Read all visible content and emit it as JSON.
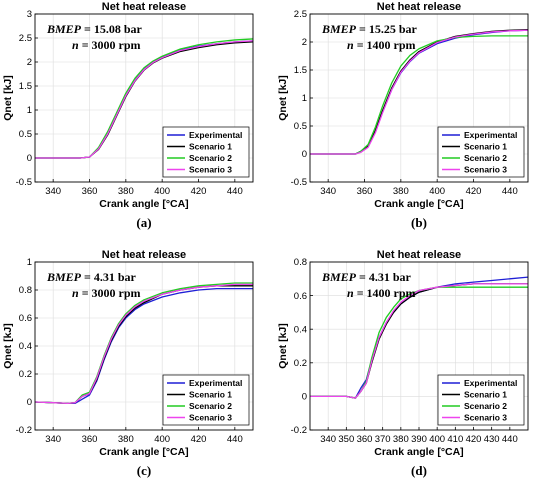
{
  "figure": {
    "background": "#ffffff"
  },
  "chart_data": [
    {
      "type": "line",
      "title": "Net heat release",
      "xlabel": "Crank angle [°CA]",
      "ylabel": "Qnet [kJ]",
      "xlim": [
        330,
        450
      ],
      "ylim": [
        -0.5,
        3
      ],
      "xticks": [
        340,
        360,
        380,
        400,
        420,
        440
      ],
      "yticks": [
        -0.5,
        0,
        0.5,
        1,
        1.5,
        2,
        2.5,
        3
      ],
      "ytick_labels": [
        "-0.5",
        "0",
        "0.5",
        "1",
        "1.5",
        "2",
        "2.5",
        "3"
      ],
      "annotation": {
        "var1": "BMEP",
        "eq1": " = 15.08 bar",
        "var2": "n",
        "eq2": " = 3000 rpm"
      },
      "sublabel": "(a)",
      "legend_position": "lower-right",
      "series": [
        {
          "name": "Experimental",
          "color": "#1f1fd6",
          "x": [
            330,
            340,
            350,
            355,
            360,
            365,
            370,
            375,
            380,
            385,
            390,
            395,
            400,
            410,
            420,
            430,
            440,
            450
          ],
          "y": [
            0,
            0,
            0,
            0,
            0.02,
            0.2,
            0.5,
            0.9,
            1.3,
            1.62,
            1.85,
            2.0,
            2.1,
            2.25,
            2.33,
            2.38,
            2.42,
            2.44
          ]
        },
        {
          "name": "Scenario 1",
          "color": "#000000",
          "x": [
            330,
            340,
            350,
            355,
            360,
            365,
            370,
            375,
            380,
            385,
            390,
            395,
            400,
            410,
            420,
            430,
            440,
            450
          ],
          "y": [
            0,
            0,
            0,
            0,
            0.02,
            0.18,
            0.48,
            0.88,
            1.28,
            1.6,
            1.83,
            1.98,
            2.08,
            2.22,
            2.3,
            2.36,
            2.4,
            2.42
          ]
        },
        {
          "name": "Scenario 2",
          "color": "#22cc22",
          "x": [
            330,
            340,
            350,
            355,
            360,
            365,
            370,
            375,
            380,
            385,
            390,
            395,
            400,
            410,
            420,
            430,
            440,
            450
          ],
          "y": [
            0,
            0,
            0,
            0,
            0.02,
            0.22,
            0.55,
            0.95,
            1.35,
            1.66,
            1.88,
            2.02,
            2.12,
            2.27,
            2.36,
            2.42,
            2.46,
            2.48
          ]
        },
        {
          "name": "Scenario 3",
          "color": "#ee44ee",
          "x": [
            330,
            340,
            350,
            355,
            360,
            365,
            370,
            375,
            380,
            385,
            390,
            395,
            400,
            410,
            420,
            430,
            440,
            450
          ],
          "y": [
            0,
            0,
            0,
            0,
            0.02,
            0.19,
            0.5,
            0.9,
            1.3,
            1.61,
            1.84,
            1.99,
            2.09,
            2.24,
            2.32,
            2.38,
            2.42,
            2.44
          ]
        }
      ]
    },
    {
      "type": "line",
      "title": "Net heat release",
      "xlabel": "Crank angle [°CA]",
      "ylabel": "Qnet [kJ]",
      "xlim": [
        330,
        450
      ],
      "ylim": [
        -0.5,
        2.5
      ],
      "xticks": [
        340,
        360,
        380,
        400,
        420,
        440
      ],
      "yticks": [
        -0.5,
        0,
        0.5,
        1,
        1.5,
        2,
        2.5
      ],
      "ytick_labels": [
        "-0.5",
        "0",
        "0.5",
        "1",
        "1.5",
        "2",
        "2.5"
      ],
      "annotation": {
        "var1": "BMEP",
        "eq1": " = 15.25 bar",
        "var2": "n",
        "eq2": " = 1400 rpm"
      },
      "sublabel": "(b)",
      "legend_position": "lower-right",
      "series": [
        {
          "name": "Experimental",
          "color": "#1f1fd6",
          "x": [
            330,
            340,
            350,
            355,
            358,
            362,
            366,
            370,
            375,
            380,
            385,
            390,
            400,
            410,
            420,
            430,
            440,
            450
          ],
          "y": [
            0,
            0,
            0,
            0,
            0.05,
            0.15,
            0.4,
            0.75,
            1.15,
            1.45,
            1.65,
            1.8,
            1.97,
            2.07,
            2.13,
            2.17,
            2.2,
            2.21
          ]
        },
        {
          "name": "Scenario 1",
          "color": "#000000",
          "x": [
            330,
            340,
            350,
            355,
            358,
            362,
            366,
            370,
            375,
            380,
            385,
            390,
            400,
            410,
            420,
            430,
            440,
            450
          ],
          "y": [
            0,
            0,
            0,
            0,
            0.04,
            0.14,
            0.42,
            0.78,
            1.18,
            1.48,
            1.68,
            1.83,
            2.0,
            2.1,
            2.15,
            2.19,
            2.21,
            2.22
          ]
        },
        {
          "name": "Scenario 2",
          "color": "#22cc22",
          "x": [
            330,
            340,
            350,
            355,
            358,
            362,
            366,
            370,
            375,
            380,
            385,
            390,
            400,
            410,
            420,
            430,
            440,
            450
          ],
          "y": [
            0,
            0,
            0,
            0,
            0.05,
            0.17,
            0.48,
            0.86,
            1.27,
            1.57,
            1.76,
            1.88,
            2.02,
            2.08,
            2.1,
            2.11,
            2.11,
            2.11
          ]
        },
        {
          "name": "Scenario 3",
          "color": "#ee44ee",
          "x": [
            330,
            340,
            350,
            355,
            358,
            362,
            366,
            370,
            375,
            380,
            385,
            390,
            400,
            410,
            420,
            430,
            440,
            450
          ],
          "y": [
            0,
            0,
            0,
            0,
            0.03,
            0.12,
            0.38,
            0.74,
            1.15,
            1.46,
            1.66,
            1.81,
            1.99,
            2.09,
            2.14,
            2.18,
            2.2,
            2.21
          ]
        }
      ]
    },
    {
      "type": "line",
      "title": "Net heat release",
      "xlabel": "Crank angle [°CA]",
      "ylabel": "Qnet [kJ]",
      "xlim": [
        330,
        450
      ],
      "ylim": [
        -0.2,
        1
      ],
      "xticks": [
        340,
        360,
        380,
        400,
        420,
        440
      ],
      "yticks": [
        -0.2,
        0,
        0.2,
        0.4,
        0.6,
        0.8,
        1
      ],
      "ytick_labels": [
        "-0.2",
        "0",
        "0.2",
        "0.4",
        "0.6",
        "0.8",
        "1"
      ],
      "annotation": {
        "var1": "BMEP",
        "eq1": " = 4.31 bar",
        "var2": "n",
        "eq2": " = 3000 rpm"
      },
      "sublabel": "(c)",
      "legend_position": "lower-right",
      "series": [
        {
          "name": "Experimental",
          "color": "#1f1fd6",
          "x": [
            330,
            340,
            348,
            352,
            356,
            360,
            364,
            368,
            372,
            376,
            380,
            385,
            390,
            400,
            410,
            420,
            430,
            440,
            450
          ],
          "y": [
            0,
            -0.005,
            -0.01,
            -0.01,
            0.02,
            0.05,
            0.15,
            0.3,
            0.43,
            0.53,
            0.6,
            0.66,
            0.7,
            0.75,
            0.78,
            0.8,
            0.81,
            0.81,
            0.81
          ]
        },
        {
          "name": "Scenario 1",
          "color": "#000000",
          "x": [
            330,
            340,
            348,
            352,
            356,
            360,
            364,
            368,
            372,
            376,
            380,
            385,
            390,
            400,
            410,
            420,
            430,
            440,
            450
          ],
          "y": [
            0,
            -0.005,
            -0.01,
            -0.005,
            0.04,
            0.06,
            0.16,
            0.31,
            0.44,
            0.54,
            0.61,
            0.67,
            0.71,
            0.77,
            0.8,
            0.82,
            0.83,
            0.83,
            0.83
          ]
        },
        {
          "name": "Scenario 2",
          "color": "#22cc22",
          "x": [
            330,
            340,
            348,
            352,
            356,
            360,
            364,
            368,
            372,
            376,
            380,
            385,
            390,
            400,
            410,
            420,
            430,
            440,
            450
          ],
          "y": [
            0,
            -0.005,
            -0.01,
            -0.005,
            0.05,
            0.07,
            0.18,
            0.33,
            0.46,
            0.56,
            0.63,
            0.69,
            0.73,
            0.78,
            0.81,
            0.83,
            0.84,
            0.85,
            0.85
          ]
        },
        {
          "name": "Scenario 3",
          "color": "#ee44ee",
          "x": [
            330,
            340,
            348,
            352,
            356,
            360,
            364,
            368,
            372,
            376,
            380,
            385,
            390,
            400,
            410,
            420,
            430,
            440,
            450
          ],
          "y": [
            0,
            -0.005,
            -0.01,
            -0.005,
            0.04,
            0.06,
            0.17,
            0.32,
            0.45,
            0.55,
            0.62,
            0.68,
            0.72,
            0.77,
            0.8,
            0.82,
            0.83,
            0.84,
            0.84
          ]
        }
      ]
    },
    {
      "type": "line",
      "title": "Net heat release",
      "xlabel": "Crank angle [°CA]",
      "ylabel": "Qnet [kJ]",
      "xlim": [
        330,
        450
      ],
      "ylim": [
        -0.2,
        0.8
      ],
      "xticks": [
        340,
        350,
        360,
        370,
        380,
        390,
        400,
        410,
        420,
        430,
        440
      ],
      "yticks": [
        -0.2,
        0,
        0.2,
        0.4,
        0.6,
        0.8
      ],
      "ytick_labels": [
        "-0.2",
        "0",
        "0.2",
        "0.4",
        "0.6",
        "0.8"
      ],
      "annotation": {
        "var1": "BMEP",
        "eq1": " = 4.31 bar",
        "var2": "n",
        "eq2": " = 1400 rpm"
      },
      "sublabel": "(d)",
      "legend_position": "lower-right",
      "series": [
        {
          "name": "Experimental",
          "color": "#1f1fd6",
          "x": [
            330,
            340,
            350,
            355,
            358,
            361,
            364,
            368,
            372,
            376,
            380,
            385,
            390,
            400,
            410,
            420,
            430,
            440,
            450
          ],
          "y": [
            0,
            0,
            0,
            -0.01,
            0.05,
            0.1,
            0.22,
            0.35,
            0.44,
            0.5,
            0.55,
            0.59,
            0.62,
            0.65,
            0.67,
            0.68,
            0.69,
            0.7,
            0.71
          ]
        },
        {
          "name": "Scenario 1",
          "color": "#000000",
          "x": [
            330,
            340,
            350,
            355,
            358,
            361,
            364,
            368,
            372,
            376,
            380,
            385,
            390,
            400,
            410,
            420,
            430,
            440,
            450
          ],
          "y": [
            0,
            0,
            0,
            -0.01,
            0.03,
            0.08,
            0.2,
            0.34,
            0.43,
            0.5,
            0.55,
            0.59,
            0.62,
            0.65,
            0.66,
            0.67,
            0.67,
            0.67,
            0.67
          ]
        },
        {
          "name": "Scenario 2",
          "color": "#22cc22",
          "x": [
            330,
            340,
            350,
            355,
            358,
            361,
            364,
            368,
            372,
            376,
            380,
            385,
            390,
            400,
            410,
            420,
            430,
            440,
            450
          ],
          "y": [
            0,
            0,
            0,
            -0.01,
            0.03,
            0.09,
            0.23,
            0.38,
            0.47,
            0.53,
            0.58,
            0.61,
            0.63,
            0.65,
            0.65,
            0.65,
            0.65,
            0.65,
            0.65
          ]
        },
        {
          "name": "Scenario 3",
          "color": "#ee44ee",
          "x": [
            330,
            340,
            350,
            355,
            358,
            361,
            364,
            368,
            372,
            376,
            380,
            385,
            390,
            400,
            410,
            420,
            430,
            440,
            450
          ],
          "y": [
            0,
            0,
            0,
            -0.01,
            0.03,
            0.08,
            0.21,
            0.35,
            0.44,
            0.51,
            0.56,
            0.6,
            0.63,
            0.65,
            0.66,
            0.67,
            0.67,
            0.67,
            0.67
          ]
        }
      ]
    }
  ]
}
